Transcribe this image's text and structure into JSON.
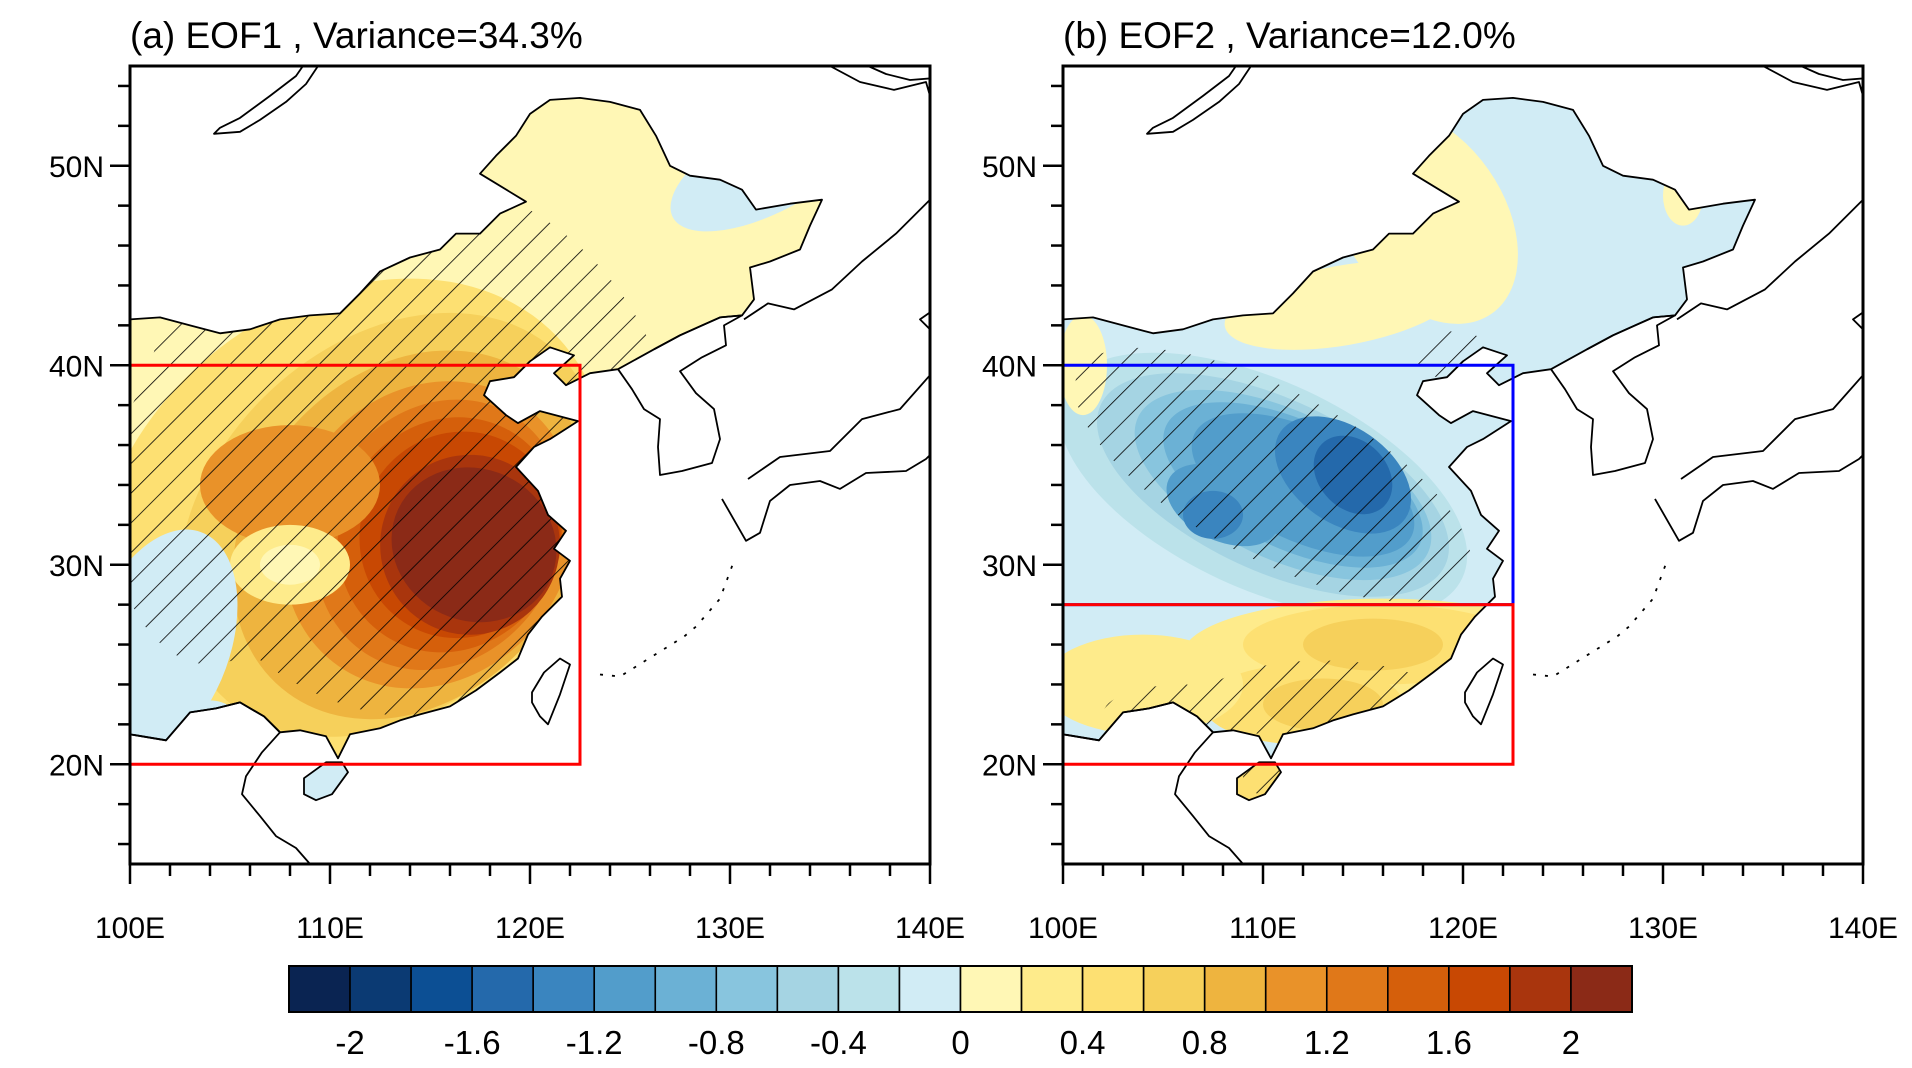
{
  "chart_data": [
    {
      "type": "heatmap",
      "subtype": "filled-contour-map",
      "title": "(a) EOF1 , Variance=34.3%",
      "mode": "EOF1",
      "variance_percent": 34.3,
      "lon_range": [
        100,
        140
      ],
      "lat_range": [
        15,
        55
      ],
      "x_ticks": [
        "100E",
        "110E",
        "120E",
        "130E",
        "140E"
      ],
      "y_ticks": [
        "20N",
        "30N",
        "40N",
        "50N"
      ],
      "x_tick_values": [
        100,
        110,
        120,
        130,
        140
      ],
      "y_tick_values": [
        20,
        30,
        40,
        50
      ],
      "boxes": [
        {
          "color": "#ff0000",
          "lon": [
            100,
            122.5
          ],
          "lat": [
            20,
            40
          ]
        }
      ],
      "pattern": "positive loading over eastern China, maximum (>2) over 112-121E, 27-37N; weak negative over far northeast and southwest corner",
      "hatching": "significant region (diagonal lines) covering most of eastern China"
    },
    {
      "type": "heatmap",
      "subtype": "filled-contour-map",
      "title": "(b) EOF2 , Variance=12.0%",
      "mode": "EOF2",
      "variance_percent": 12.0,
      "lon_range": [
        100,
        140
      ],
      "lat_range": [
        15,
        55
      ],
      "x_ticks": [
        "100E",
        "110E",
        "120E",
        "130E",
        "140E"
      ],
      "y_ticks": [
        "20N",
        "30N",
        "40N",
        "50N"
      ],
      "x_tick_values": [
        100,
        110,
        120,
        130,
        140
      ],
      "y_tick_values": [
        20,
        30,
        40,
        50
      ],
      "boxes": [
        {
          "color": "#0000ff",
          "lon": [
            100,
            122.5
          ],
          "lat": [
            28,
            40
          ]
        },
        {
          "color": "#ff0000",
          "lon": [
            100,
            122.5
          ],
          "lat": [
            20,
            28
          ]
        }
      ],
      "pattern": "dipole: negative loading (min about -1.4) over 105-118E, 30-38N; positive loading south of 28N",
      "hatching": "significant region (diagonal lines) in central-north China and southern China"
    }
  ],
  "colorbar": {
    "levels": [
      -2,
      -1.8,
      -1.6,
      -1.4,
      -1.2,
      -1,
      -0.8,
      -0.6,
      -0.4,
      -0.2,
      0,
      0.2,
      0.4,
      0.6,
      0.8,
      1,
      1.2,
      1.4,
      1.6,
      1.8,
      2
    ],
    "labels": [
      "-2",
      "-1.6",
      "-1.2",
      "-0.8",
      "-0.4",
      "0",
      "0.4",
      "0.8",
      "1.2",
      "1.6",
      "2"
    ],
    "colors": [
      "#0a2452",
      "#0b3a73",
      "#0c4f94",
      "#2469ab",
      "#3a85bf",
      "#529dcb",
      "#6bb1d5",
      "#88c5de",
      "#a5d4e3",
      "#bbe2ea",
      "#d1ecf5",
      "#fff7b5",
      "#feeb8b",
      "#fde072",
      "#f6d05b",
      "#eeb43f",
      "#e99229",
      "#e07819",
      "#d55f0b",
      "#c84803",
      "#a9350d",
      "#8b2a17"
    ]
  }
}
